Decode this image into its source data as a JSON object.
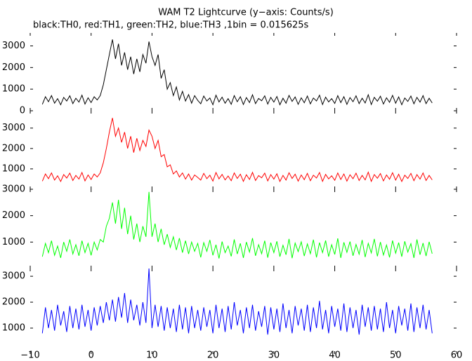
{
  "chart_data": {
    "type": "line",
    "title": "WAM T2 Lightcurve (y−axis: Counts/s)",
    "subtitle": "black:TH0, red:TH1, green:TH2, blue:TH3 ,1bin = 0.015625s",
    "xlim": [
      -10,
      60
    ],
    "xticks": [
      {
        "value": -10,
        "label": "−10"
      },
      0,
      10,
      20,
      30,
      40,
      50,
      60
    ],
    "x": [
      -8,
      -7.5,
      -7,
      -6.5,
      -6,
      -5.5,
      -5,
      -4.5,
      -4,
      -3.5,
      -3,
      -2.5,
      -2,
      -1.5,
      -1,
      -0.5,
      0,
      0.5,
      1,
      1.5,
      2,
      2.5,
      3,
      3.5,
      4,
      4.5,
      5,
      5.5,
      6,
      6.5,
      7,
      7.5,
      8,
      8.5,
      9,
      9.5,
      10,
      10.5,
      11,
      11.5,
      12,
      12.5,
      13,
      13.5,
      14,
      14.5,
      15,
      15.5,
      16,
      16.5,
      17,
      17.5,
      18,
      18.5,
      19,
      19.5,
      20,
      20.5,
      21,
      21.5,
      22,
      22.5,
      23,
      23.5,
      24,
      24.5,
      25,
      25.5,
      26,
      26.5,
      27,
      27.5,
      28,
      28.5,
      29,
      29.5,
      30,
      30.5,
      31,
      31.5,
      32,
      32.5,
      33,
      33.5,
      34,
      34.5,
      35,
      35.5,
      36,
      36.5,
      37,
      37.5,
      38,
      38.5,
      39,
      39.5,
      40,
      40.5,
      41,
      41.5,
      42,
      42.5,
      43,
      43.5,
      44,
      44.5,
      45,
      45.5,
      46,
      46.5,
      47,
      47.5,
      48,
      48.5,
      49,
      49.5,
      50,
      50.5,
      51,
      51.5,
      52,
      52.5,
      53,
      53.5,
      54,
      54.5,
      55,
      55.5,
      56
    ],
    "panels": [
      {
        "color": "#000000",
        "ylim": [
          0,
          3600
        ],
        "yticks": [
          0,
          1000,
          2000,
          3000
        ],
        "values": [
          300,
          650,
          420,
          700,
          350,
          560,
          280,
          620,
          450,
          690,
          330,
          580,
          400,
          720,
          310,
          600,
          380,
          650,
          500,
          700,
          1200,
          1900,
          2600,
          3300,
          2400,
          3100,
          2100,
          2700,
          1900,
          2500,
          1700,
          2400,
          1800,
          2600,
          2200,
          3200,
          2500,
          2100,
          2600,
          1500,
          1900,
          1000,
          1300,
          700,
          1100,
          500,
          900,
          450,
          750,
          350,
          700,
          480,
          320,
          680,
          450,
          590,
          280,
          720,
          410,
          630,
          350,
          560,
          300,
          700,
          420,
          650,
          290,
          610,
          380,
          740,
          330,
          570,
          460,
          690,
          310,
          620,
          400,
          660,
          280,
          580,
          350,
          710,
          430,
          640,
          300,
          600,
          370,
          680,
          320,
          590,
          450,
          720,
          290,
          630,
          410,
          560,
          340,
          700,
          380,
          650,
          300,
          610,
          420,
          690,
          330,
          580,
          360,
          740,
          290,
          620,
          440,
          670,
          310,
          600,
          390,
          710,
          350,
          640,
          280,
          590,
          430,
          680,
          320,
          620,
          400,
          700,
          330,
          580,
          360
        ]
      },
      {
        "color": "#ff0000",
        "ylim": [
          0,
          3850
        ],
        "yticks": [
          1000,
          2000,
          3000
        ],
        "values": [
          400,
          750,
          520,
          800,
          450,
          660,
          380,
          720,
          550,
          790,
          430,
          680,
          500,
          820,
          410,
          700,
          480,
          750,
          600,
          800,
          1300,
          2000,
          2800,
          3500,
          2600,
          3000,
          2300,
          2800,
          2000,
          2600,
          1800,
          2500,
          1900,
          2400,
          2100,
          2900,
          2600,
          2000,
          2400,
          1600,
          1700,
          1100,
          1200,
          750,
          900,
          600,
          800,
          500,
          750,
          450,
          700,
          580,
          450,
          780,
          520,
          690,
          400,
          820,
          510,
          730,
          460,
          650,
          420,
          800,
          530,
          740,
          390,
          710,
          480,
          830,
          430,
          670,
          560,
          790,
          410,
          720,
          500,
          760,
          380,
          680,
          450,
          810,
          530,
          740,
          400,
          700,
          470,
          780,
          420,
          690,
          550,
          820,
          390,
          730,
          510,
          660,
          440,
          800,
          480,
          750,
          400,
          710,
          520,
          790,
          430,
          680,
          460,
          840,
          390,
          720,
          540,
          770,
          410,
          700,
          490,
          810,
          450,
          740,
          380,
          690,
          530,
          780,
          420,
          720,
          500,
          800,
          430,
          680,
          460
        ]
      },
      {
        "color": "#00ff00",
        "ylim": [
          0,
          3000
        ],
        "yticks": [
          1000,
          2000,
          3000
        ],
        "values": [
          450,
          950,
          600,
          1050,
          500,
          850,
          400,
          1000,
          650,
          1100,
          550,
          900,
          480,
          1050,
          600,
          950,
          500,
          1000,
          700,
          1100,
          1000,
          1600,
          1900,
          2500,
          1700,
          2600,
          1500,
          2300,
          1300,
          2000,
          1100,
          1700,
          1000,
          1600,
          1200,
          2900,
          1200,
          1700,
          1000,
          1500,
          900,
          1300,
          800,
          1200,
          700,
          1150,
          600,
          1050,
          550,
          1000,
          650,
          950,
          420,
          980,
          650,
          1080,
          500,
          900,
          380,
          1020,
          600,
          850,
          460,
          1100,
          550,
          950,
          400,
          1000,
          620,
          1150,
          480,
          900,
          560,
          1050,
          410,
          980,
          600,
          1030,
          450,
          880,
          520,
          1120,
          390,
          960,
          640,
          1010,
          470,
          930,
          560,
          1090,
          420,
          980,
          600,
          1060,
          450,
          900,
          530,
          1140,
          400,
          990,
          610,
          1020,
          480,
          910,
          540,
          1080,
          430,
          950,
          590,
          1120,
          460,
          1000,
          510,
          890,
          420,
          1060,
          580,
          980,
          450,
          1030,
          620,
          940,
          400,
          1100,
          520,
          960,
          470,
          1010,
          560
        ]
      },
      {
        "color": "#0000ff",
        "ylim": [
          0,
          3300
        ],
        "yticks": [
          1000,
          2000,
          3000
        ],
        "values": [
          800,
          1800,
          1000,
          1700,
          900,
          1900,
          1100,
          1650,
          850,
          1850,
          1000,
          1750,
          950,
          1900,
          1050,
          1700,
          900,
          1800,
          1100,
          1850,
          1200,
          2000,
          1300,
          2100,
          1250,
          2200,
          1400,
          2350,
          1200,
          2100,
          1300,
          1900,
          1100,
          2000,
          1200,
          3300,
          1000,
          1900,
          1050,
          1850,
          900,
          1800,
          1000,
          1750,
          850,
          1900,
          950,
          1800,
          800,
          1850,
          1000,
          1700,
          900,
          1800,
          1050,
          1700,
          800,
          1900,
          1000,
          1750,
          850,
          1850,
          950,
          2000,
          1100,
          1700,
          800,
          1800,
          1000,
          1900,
          900,
          1650,
          1050,
          1850,
          750,
          1800,
          950,
          1750,
          850,
          1950,
          1000,
          1700,
          800,
          1850,
          1100,
          1750,
          900,
          1900,
          850,
          1800,
          1000,
          2050,
          950,
          1700,
          800,
          1850,
          1050,
          1750,
          900,
          1950,
          850,
          1800,
          1000,
          1700,
          750,
          1900,
          1050,
          1800,
          900,
          1850,
          950,
          1750,
          850,
          2000,
          1000,
          1700,
          800,
          1850,
          1100,
          1750,
          900,
          1950,
          850,
          1800,
          1000,
          1900,
          950,
          1700,
          800
        ]
      }
    ]
  }
}
